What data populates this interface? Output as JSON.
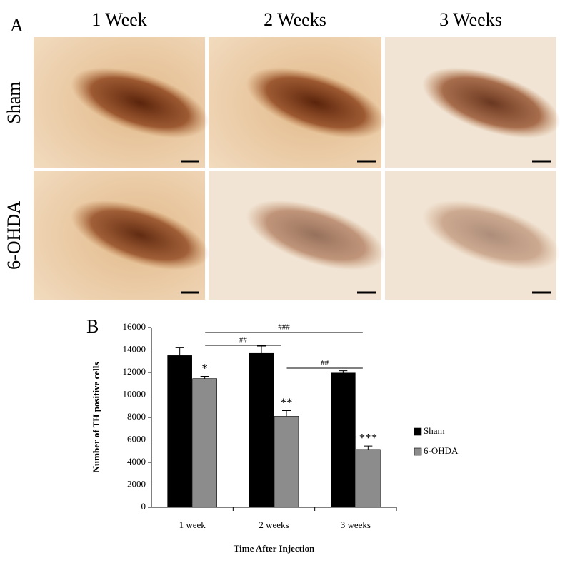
{
  "panel_a": {
    "label": "A",
    "columns": [
      "1 Week",
      "2 Weeks",
      "3 Weeks"
    ],
    "rows": [
      "Sham",
      "6-OHDA"
    ]
  },
  "panel_b_label": "B",
  "chart_data": {
    "type": "bar",
    "categories": [
      "1 week",
      "2 weeks",
      "3 weeks"
    ],
    "series": [
      {
        "name": "Sham",
        "color": "#000000",
        "values": [
          13500,
          13700,
          11950
        ],
        "errors": [
          750,
          650,
          200
        ]
      },
      {
        "name": "6-OHDA",
        "color": "#8c8c8c",
        "values": [
          11450,
          8100,
          5150
        ],
        "errors": [
          200,
          500,
          300
        ],
        "significance": [
          "*",
          "**",
          "***"
        ]
      }
    ],
    "comparisons": [
      {
        "label": "###",
        "from": 0,
        "to": 2
      },
      {
        "label": "##",
        "from": 0,
        "to": 1
      },
      {
        "label": "##",
        "from": 1,
        "to": 2
      }
    ],
    "ylabel": "Number of TH positive cells",
    "xlabel": "Time After Injection",
    "ylim": [
      0,
      16000
    ],
    "yticks": [
      0,
      2000,
      4000,
      6000,
      8000,
      10000,
      12000,
      14000,
      16000
    ],
    "legend": "right"
  }
}
